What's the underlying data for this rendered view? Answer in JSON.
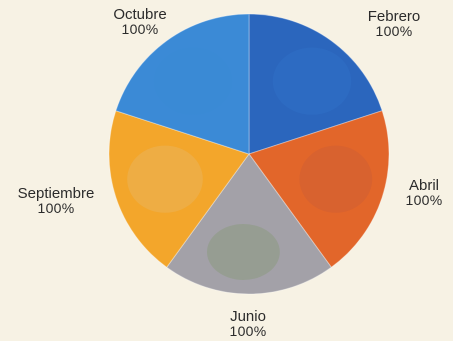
{
  "chart_data": {
    "type": "pie",
    "slices": [
      {
        "label": "Febrero",
        "pct_label": "100%",
        "value": 1,
        "color": "#2b66bd",
        "inner_color": "#2f6fc6"
      },
      {
        "label": "Abril",
        "pct_label": "100%",
        "value": 1,
        "color": "#e2662a",
        "inner_color": "#cf5f33"
      },
      {
        "label": "Junio",
        "pct_label": "100%",
        "value": 1,
        "color": "#a3a1a8",
        "inner_color": "#8d9a80"
      },
      {
        "label": "Septiembre",
        "pct_label": "100%",
        "value": 1,
        "color": "#f3a62b",
        "inner_color": "#e9b25a"
      },
      {
        "label": "Octubre",
        "pct_label": "100%",
        "value": 1,
        "color": "#3b8ad6",
        "inner_color": "#3b8ad6"
      }
    ],
    "start_angle_deg": 0,
    "direction": "clockwise",
    "legend": "none"
  }
}
